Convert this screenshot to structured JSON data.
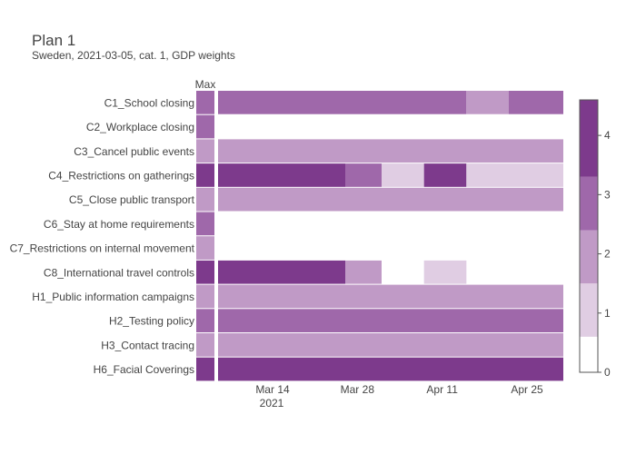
{
  "chart_data": {
    "type": "heatmap",
    "title": "Plan 1",
    "subtitle": "Sweden, 2021-03-05, cat. 1, GDP weights",
    "max_column_label": "Max",
    "rows": [
      "C1_School closing",
      "C2_Workplace closing",
      "C3_Cancel public events",
      "C4_Restrictions on gatherings",
      "C5_Close public transport",
      "C6_Stay at home requirements",
      "C7_Restrictions on internal movement",
      "C8_International travel controls",
      "H1_Public information campaigns",
      "H2_Testing policy",
      "H3_Contact tracing",
      "H6_Facial Coverings"
    ],
    "x_ticks": [
      "Mar 14",
      "Mar 28",
      "Apr 11",
      "Apr 25"
    ],
    "x_year": "2021",
    "date_range": [
      "2021-03-05",
      "2021-05-01"
    ],
    "tick_dates": [
      "2021-03-14",
      "2021-03-28",
      "2021-04-11",
      "2021-04-25"
    ],
    "max_values": [
      3,
      3,
      2,
      4,
      2,
      3,
      2,
      4,
      2,
      3,
      2,
      4
    ],
    "segments": [
      [
        {
          "start": "2021-03-05",
          "end": "2021-04-15",
          "value": 3
        },
        {
          "start": "2021-04-15",
          "end": "2021-04-22",
          "value": 2
        },
        {
          "start": "2021-04-22",
          "end": "2021-05-01",
          "value": 3
        }
      ],
      [],
      [
        {
          "start": "2021-03-05",
          "end": "2021-05-01",
          "value": 2
        }
      ],
      [
        {
          "start": "2021-03-05",
          "end": "2021-03-26",
          "value": 4
        },
        {
          "start": "2021-03-26",
          "end": "2021-04-01",
          "value": 3
        },
        {
          "start": "2021-04-01",
          "end": "2021-04-08",
          "value": 1
        },
        {
          "start": "2021-04-08",
          "end": "2021-04-15",
          "value": 4
        },
        {
          "start": "2021-04-15",
          "end": "2021-05-01",
          "value": 1
        }
      ],
      [
        {
          "start": "2021-03-05",
          "end": "2021-05-01",
          "value": 2
        }
      ],
      [],
      [],
      [
        {
          "start": "2021-03-05",
          "end": "2021-03-26",
          "value": 4
        },
        {
          "start": "2021-03-26",
          "end": "2021-04-01",
          "value": 2
        },
        {
          "start": "2021-04-08",
          "end": "2021-04-15",
          "value": 1
        }
      ],
      [
        {
          "start": "2021-03-05",
          "end": "2021-05-01",
          "value": 2
        }
      ],
      [
        {
          "start": "2021-03-05",
          "end": "2021-05-01",
          "value": 3
        }
      ],
      [
        {
          "start": "2021-03-05",
          "end": "2021-05-01",
          "value": 2
        }
      ],
      [
        {
          "start": "2021-03-05",
          "end": "2021-05-01",
          "value": 4
        }
      ]
    ],
    "colorscale": {
      "0": "#ffffff",
      "1": "#e0cde3",
      "2": "#c09ac6",
      "3": "#9f68aa",
      "4": "#7d3a8c"
    },
    "colorbar_ticks": [
      "0",
      "1",
      "2",
      "3",
      "4"
    ],
    "colorbar_range": [
      0,
      4.6
    ],
    "grid": false
  }
}
